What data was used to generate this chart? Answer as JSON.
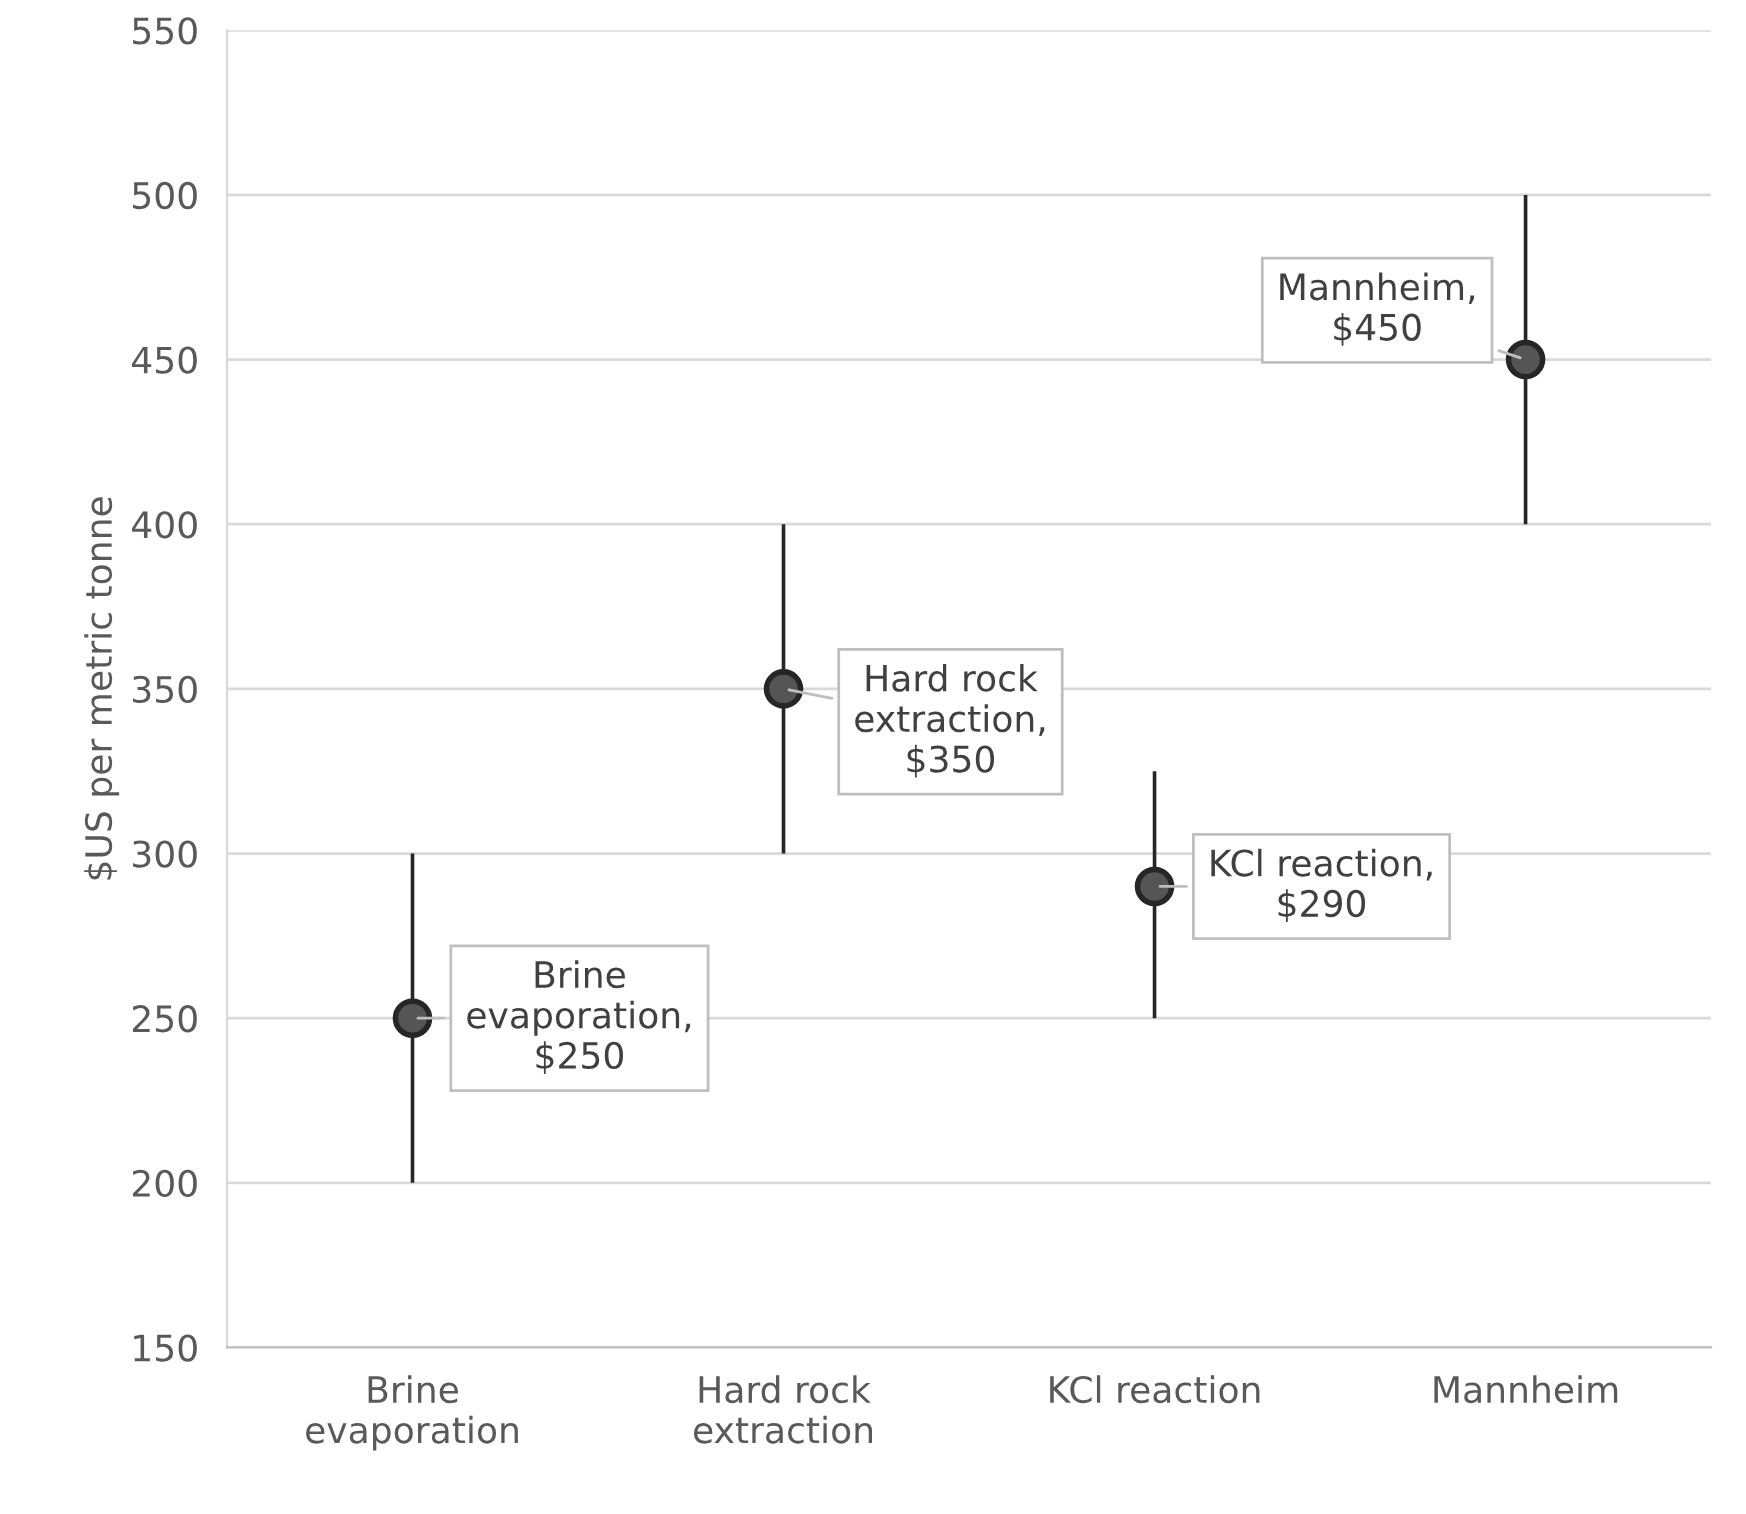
{
  "chart_data": {
    "type": "scatter",
    "ylabel": "$US per metric tonne",
    "categories": [
      "Brine\nevaporation",
      "Hard rock\nextraction",
      "KCl reaction",
      "Mannheim"
    ],
    "values": [
      250,
      350,
      290,
      450
    ],
    "errors": [
      50,
      50,
      [
        250,
        325
      ],
      50
    ],
    "value_labels": [
      "Brine\nevaporation,\n$250",
      "Hard rock\nextraction,\n$350",
      "KCl reaction,\n$290",
      "Mannheim,\n$450"
    ],
    "color": "#262626",
    "marker": "circle",
    "ylim": [
      150,
      550
    ],
    "yticks": [
      150,
      200,
      250,
      300,
      350,
      400,
      450,
      500,
      550
    ],
    "grid": "y",
    "legend": false
  }
}
